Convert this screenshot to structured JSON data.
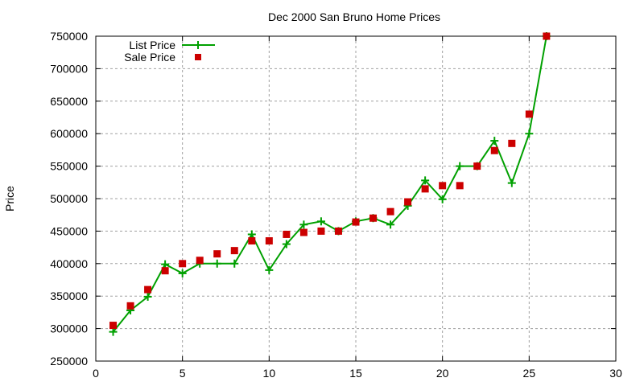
{
  "chart_data": {
    "type": "line",
    "title": "Dec 2000 San Bruno Home Prices",
    "xlabel": "",
    "ylabel": "Price",
    "xlim": [
      0,
      30
    ],
    "ylim": [
      250000,
      750000
    ],
    "xticks": [
      0,
      5,
      10,
      15,
      20,
      25,
      30
    ],
    "yticks": [
      250000,
      300000,
      350000,
      400000,
      450000,
      500000,
      550000,
      600000,
      650000,
      700000,
      750000
    ],
    "grid": true,
    "legend_position": "top-left",
    "x": [
      1,
      2,
      3,
      4,
      5,
      6,
      7,
      8,
      9,
      10,
      11,
      12,
      13,
      14,
      15,
      16,
      17,
      18,
      19,
      20,
      21,
      22,
      23,
      24,
      25,
      26
    ],
    "series": [
      {
        "name": "List Price",
        "style": "linespoints",
        "marker": "plus",
        "color": "#00a000",
        "values": [
          295000,
          328000,
          349000,
          399000,
          385000,
          400000,
          400000,
          400000,
          445000,
          390000,
          430000,
          460000,
          465000,
          450000,
          465000,
          470000,
          460000,
          489000,
          528000,
          499000,
          550000,
          550000,
          589000,
          524000,
          600000,
          750000
        ]
      },
      {
        "name": "Sale Price",
        "style": "points",
        "marker": "square",
        "color": "#cc0000",
        "values": [
          305000,
          335000,
          360000,
          389000,
          400000,
          405000,
          415000,
          420000,
          435000,
          435000,
          445000,
          448000,
          450000,
          450000,
          464000,
          470000,
          480000,
          495000,
          515000,
          520000,
          520000,
          550000,
          574000,
          585000,
          630000,
          750000
        ]
      }
    ]
  }
}
